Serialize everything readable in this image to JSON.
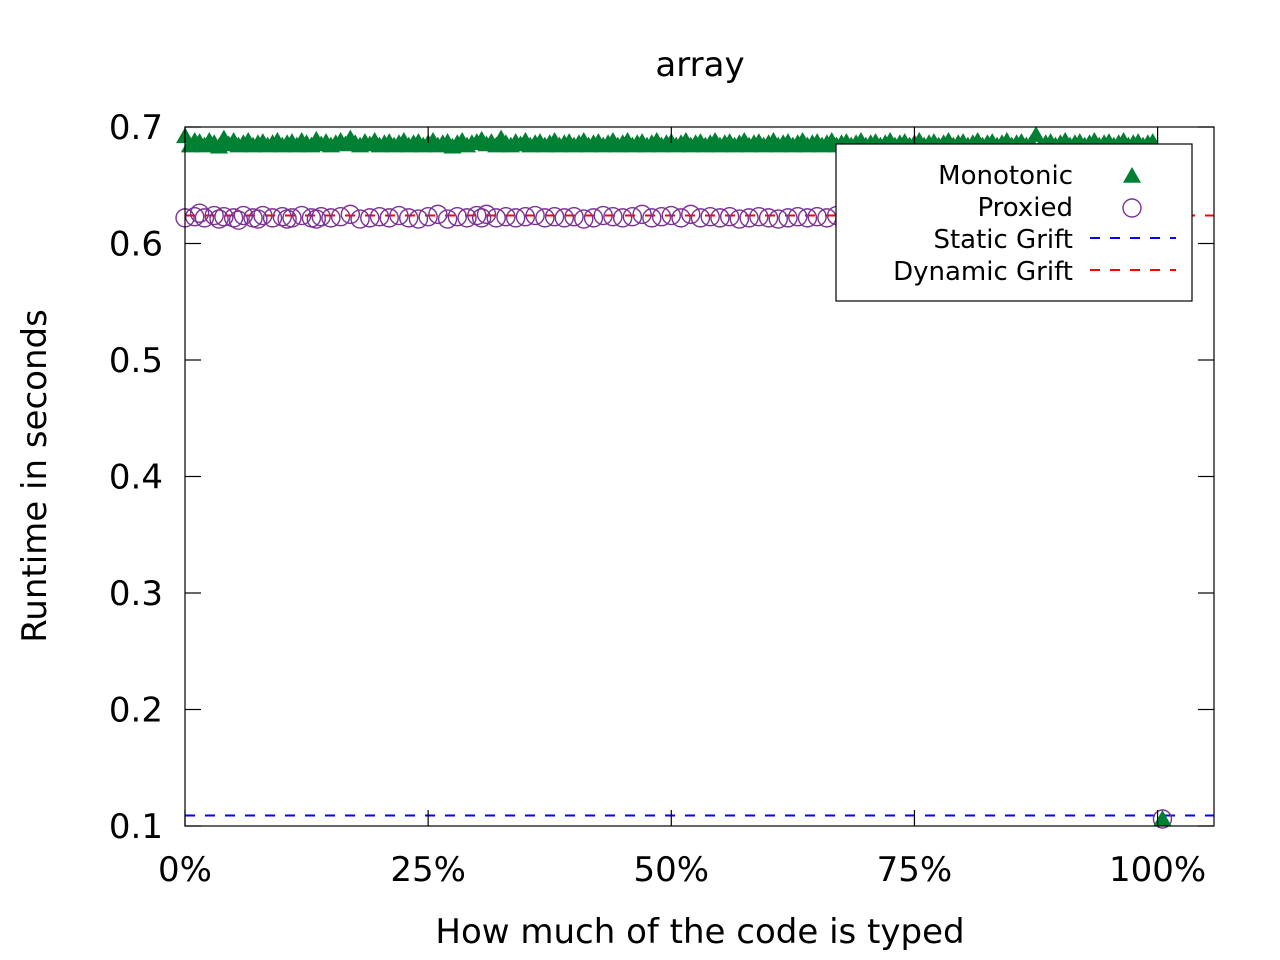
{
  "chart_data": {
    "type": "scatter",
    "title": "array",
    "xlabel": "How much of the code is typed",
    "ylabel": "Runtime in seconds",
    "xlim": [
      0,
      105.8
    ],
    "ylim": [
      0.1,
      0.7
    ],
    "x_ticks": [
      {
        "value": 0,
        "label": "0%"
      },
      {
        "value": 25,
        "label": "25%"
      },
      {
        "value": 50,
        "label": "50%"
      },
      {
        "value": 75,
        "label": "75%"
      },
      {
        "value": 100,
        "label": "100%"
      }
    ],
    "y_ticks": [
      {
        "value": 0.1,
        "label": "0.1"
      },
      {
        "value": 0.2,
        "label": "0.2"
      },
      {
        "value": 0.3,
        "label": "0.3"
      },
      {
        "value": 0.4,
        "label": "0.4"
      },
      {
        "value": 0.5,
        "label": "0.5"
      },
      {
        "value": 0.6,
        "label": "0.6"
      },
      {
        "value": 0.7,
        "label": "0.7"
      }
    ],
    "grid": false,
    "legend_position": "top-right",
    "series": [
      {
        "name": "Monotonic",
        "marker": "triangle",
        "color": "#008033",
        "points": [
          [
            0,
            0.692
          ],
          [
            0.5,
            0.684
          ],
          [
            1,
            0.688
          ],
          [
            1.5,
            0.687
          ],
          [
            2,
            0.684
          ],
          [
            2.5,
            0.688
          ],
          [
            3,
            0.686
          ],
          [
            3.5,
            0.683
          ],
          [
            4,
            0.69
          ],
          [
            4.5,
            0.685
          ],
          [
            5,
            0.688
          ],
          [
            5.5,
            0.684
          ],
          [
            6,
            0.686
          ],
          [
            6.5,
            0.688
          ],
          [
            7,
            0.684
          ],
          [
            7.5,
            0.686
          ],
          [
            8,
            0.687
          ],
          [
            8.5,
            0.684
          ],
          [
            9,
            0.686
          ],
          [
            9.5,
            0.688
          ],
          [
            10,
            0.684
          ],
          [
            10.5,
            0.686
          ],
          [
            11,
            0.687
          ],
          [
            11.5,
            0.684
          ],
          [
            12,
            0.688
          ],
          [
            12.5,
            0.686
          ],
          [
            13,
            0.684
          ],
          [
            13.5,
            0.689
          ],
          [
            14,
            0.685
          ],
          [
            14.5,
            0.687
          ],
          [
            15,
            0.684
          ],
          [
            15.5,
            0.686
          ],
          [
            16,
            0.688
          ],
          [
            16.5,
            0.685
          ],
          [
            17,
            0.69
          ],
          [
            17.5,
            0.686
          ],
          [
            18,
            0.684
          ],
          [
            18.5,
            0.687
          ],
          [
            19,
            0.685
          ],
          [
            19.5,
            0.688
          ],
          [
            20,
            0.684
          ],
          [
            20.5,
            0.686
          ],
          [
            21,
            0.687
          ],
          [
            21.5,
            0.684
          ],
          [
            22,
            0.686
          ],
          [
            22.5,
            0.688
          ],
          [
            23,
            0.684
          ],
          [
            23.5,
            0.686
          ],
          [
            24,
            0.687
          ],
          [
            24.5,
            0.684
          ],
          [
            25,
            0.686
          ],
          [
            25.5,
            0.688
          ],
          [
            26,
            0.684
          ],
          [
            26.5,
            0.686
          ],
          [
            27,
            0.687
          ],
          [
            27.5,
            0.683
          ],
          [
            28,
            0.686
          ],
          [
            28.5,
            0.688
          ],
          [
            29,
            0.684
          ],
          [
            29.5,
            0.686
          ],
          [
            30,
            0.687
          ],
          [
            30.5,
            0.689
          ],
          [
            31,
            0.685
          ],
          [
            31.5,
            0.687
          ],
          [
            32,
            0.684
          ],
          [
            32.5,
            0.69
          ],
          [
            33,
            0.686
          ],
          [
            33.5,
            0.684
          ],
          [
            34,
            0.687
          ],
          [
            34.5,
            0.685
          ],
          [
            35,
            0.688
          ],
          [
            35.5,
            0.684
          ],
          [
            36,
            0.686
          ],
          [
            36.5,
            0.687
          ],
          [
            37,
            0.684
          ],
          [
            37.5,
            0.686
          ],
          [
            38,
            0.688
          ],
          [
            38.5,
            0.684
          ],
          [
            39,
            0.686
          ],
          [
            39.5,
            0.687
          ],
          [
            40,
            0.684
          ],
          [
            40.5,
            0.686
          ],
          [
            41,
            0.688
          ],
          [
            41.5,
            0.684
          ],
          [
            42,
            0.686
          ],
          [
            42.5,
            0.687
          ],
          [
            43,
            0.684
          ],
          [
            43.5,
            0.686
          ],
          [
            44,
            0.688
          ],
          [
            44.5,
            0.684
          ],
          [
            45,
            0.686
          ],
          [
            45.5,
            0.688
          ],
          [
            46,
            0.684
          ],
          [
            46.5,
            0.686
          ],
          [
            47,
            0.687
          ],
          [
            47.5,
            0.684
          ],
          [
            48,
            0.686
          ],
          [
            48.5,
            0.688
          ],
          [
            49,
            0.684
          ],
          [
            49.5,
            0.686
          ],
          [
            50,
            0.687
          ],
          [
            50.5,
            0.684
          ],
          [
            51,
            0.686
          ],
          [
            51.5,
            0.688
          ],
          [
            52,
            0.684
          ],
          [
            52.5,
            0.686
          ],
          [
            53,
            0.687
          ],
          [
            53.5,
            0.684
          ],
          [
            54,
            0.686
          ],
          [
            54.5,
            0.688
          ],
          [
            55,
            0.684
          ],
          [
            55.5,
            0.686
          ],
          [
            56,
            0.687
          ],
          [
            56.5,
            0.684
          ],
          [
            57,
            0.686
          ],
          [
            57.5,
            0.688
          ],
          [
            58,
            0.684
          ],
          [
            58.5,
            0.686
          ],
          [
            59,
            0.687
          ],
          [
            59.5,
            0.684
          ],
          [
            60,
            0.686
          ],
          [
            60.5,
            0.688
          ],
          [
            61,
            0.684
          ],
          [
            61.5,
            0.686
          ],
          [
            62,
            0.687
          ],
          [
            62.5,
            0.684
          ],
          [
            63,
            0.686
          ],
          [
            63.5,
            0.688
          ],
          [
            64,
            0.684
          ],
          [
            64.5,
            0.686
          ],
          [
            65,
            0.687
          ],
          [
            65.5,
            0.684
          ],
          [
            66,
            0.686
          ],
          [
            66.5,
            0.688
          ],
          [
            67,
            0.684
          ],
          [
            67.5,
            0.686
          ],
          [
            68,
            0.687
          ],
          [
            68.5,
            0.684
          ],
          [
            69,
            0.686
          ],
          [
            69.5,
            0.688
          ],
          [
            70,
            0.684
          ],
          [
            70.5,
            0.686
          ],
          [
            71,
            0.687
          ],
          [
            71.5,
            0.684
          ],
          [
            72,
            0.686
          ],
          [
            72.5,
            0.688
          ],
          [
            73,
            0.684
          ],
          [
            73.5,
            0.686
          ],
          [
            74,
            0.687
          ],
          [
            74.5,
            0.684
          ],
          [
            75,
            0.686
          ],
          [
            75.5,
            0.688
          ],
          [
            76,
            0.684
          ],
          [
            76.5,
            0.686
          ],
          [
            77,
            0.687
          ],
          [
            77.5,
            0.684
          ],
          [
            78,
            0.686
          ],
          [
            78.5,
            0.688
          ],
          [
            79,
            0.684
          ],
          [
            79.5,
            0.686
          ],
          [
            80,
            0.687
          ],
          [
            80.5,
            0.684
          ],
          [
            81,
            0.686
          ],
          [
            81.5,
            0.688
          ],
          [
            82,
            0.684
          ],
          [
            82.5,
            0.686
          ],
          [
            83,
            0.687
          ],
          [
            83.5,
            0.684
          ],
          [
            84,
            0.686
          ],
          [
            84.5,
            0.688
          ],
          [
            85,
            0.684
          ],
          [
            85.5,
            0.686
          ],
          [
            86,
            0.687
          ],
          [
            86.5,
            0.684
          ],
          [
            87,
            0.686
          ],
          [
            87.5,
            0.693
          ],
          [
            88,
            0.684
          ],
          [
            88.5,
            0.686
          ],
          [
            89,
            0.687
          ],
          [
            89.5,
            0.684
          ],
          [
            90,
            0.686
          ],
          [
            90.5,
            0.688
          ],
          [
            91,
            0.684
          ],
          [
            91.5,
            0.686
          ],
          [
            92,
            0.687
          ],
          [
            92.5,
            0.684
          ],
          [
            93,
            0.686
          ],
          [
            93.5,
            0.688
          ],
          [
            94,
            0.684
          ],
          [
            94.5,
            0.686
          ],
          [
            95,
            0.687
          ],
          [
            95.5,
            0.684
          ],
          [
            96,
            0.686
          ],
          [
            96.5,
            0.688
          ],
          [
            97,
            0.684
          ],
          [
            97.5,
            0.686
          ],
          [
            98,
            0.687
          ],
          [
            98.5,
            0.684
          ],
          [
            99,
            0.686
          ],
          [
            99.5,
            0.687
          ],
          [
            100.5,
            0.106
          ]
        ]
      },
      {
        "name": "Proxied",
        "marker": "circle",
        "color": "#7b3294",
        "points": [
          [
            0,
            0.622
          ],
          [
            1,
            0.623
          ],
          [
            1.5,
            0.626
          ],
          [
            2,
            0.622
          ],
          [
            3,
            0.624
          ],
          [
            3.5,
            0.621
          ],
          [
            4,
            0.623
          ],
          [
            5,
            0.622
          ],
          [
            5.5,
            0.62
          ],
          [
            6,
            0.624
          ],
          [
            7,
            0.622
          ],
          [
            7.5,
            0.621
          ],
          [
            8,
            0.624
          ],
          [
            9,
            0.622
          ],
          [
            10,
            0.623
          ],
          [
            10.5,
            0.621
          ],
          [
            11,
            0.622
          ],
          [
            12,
            0.624
          ],
          [
            13,
            0.622
          ],
          [
            13.5,
            0.621
          ],
          [
            14,
            0.623
          ],
          [
            15,
            0.622
          ],
          [
            16,
            0.623
          ],
          [
            17,
            0.625
          ],
          [
            18,
            0.621
          ],
          [
            19,
            0.622
          ],
          [
            20,
            0.623
          ],
          [
            21,
            0.622
          ],
          [
            22,
            0.624
          ],
          [
            23,
            0.622
          ],
          [
            24,
            0.621
          ],
          [
            25,
            0.623
          ],
          [
            26,
            0.625
          ],
          [
            27,
            0.621
          ],
          [
            28,
            0.623
          ],
          [
            29,
            0.622
          ],
          [
            30,
            0.624
          ],
          [
            30.5,
            0.622
          ],
          [
            31,
            0.625
          ],
          [
            32,
            0.622
          ],
          [
            33,
            0.623
          ],
          [
            34,
            0.622
          ],
          [
            35,
            0.623
          ],
          [
            36,
            0.624
          ],
          [
            37,
            0.622
          ],
          [
            38,
            0.623
          ],
          [
            39,
            0.622
          ],
          [
            40,
            0.623
          ],
          [
            41,
            0.621
          ],
          [
            42,
            0.622
          ],
          [
            43,
            0.624
          ],
          [
            44,
            0.623
          ],
          [
            45,
            0.622
          ],
          [
            46,
            0.623
          ],
          [
            47,
            0.625
          ],
          [
            48,
            0.622
          ],
          [
            49,
            0.623
          ],
          [
            50,
            0.624
          ],
          [
            51,
            0.622
          ],
          [
            52,
            0.625
          ],
          [
            53,
            0.622
          ],
          [
            54,
            0.623
          ],
          [
            55,
            0.622
          ],
          [
            56,
            0.623
          ],
          [
            57,
            0.621
          ],
          [
            58,
            0.622
          ],
          [
            59,
            0.623
          ],
          [
            60,
            0.622
          ],
          [
            61,
            0.621
          ],
          [
            62,
            0.622
          ],
          [
            63,
            0.623
          ],
          [
            64,
            0.622
          ],
          [
            65,
            0.623
          ],
          [
            66,
            0.622
          ],
          [
            67,
            0.624
          ],
          [
            100.5,
            0.106
          ]
        ]
      },
      {
        "name": "Static Grift",
        "marker": "dashed-line",
        "color": "#0000ff",
        "y": 0.109
      },
      {
        "name": "Dynamic Grift",
        "marker": "dashed-line",
        "color": "#ff0000",
        "y": 0.624
      }
    ]
  }
}
